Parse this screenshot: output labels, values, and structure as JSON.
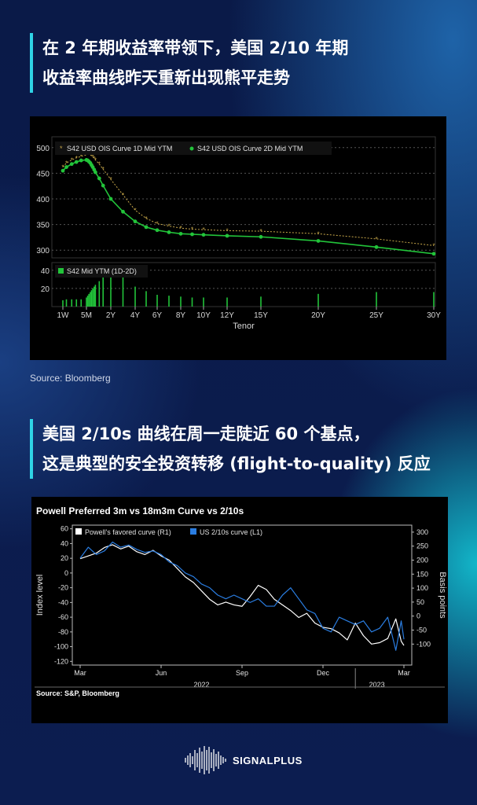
{
  "headline1": {
    "line1": "在 2 年期收益率带领下，美国 2/10 年期",
    "line2": "收益率曲线昨天重新出现熊平走势"
  },
  "headline2": {
    "line1": "美国 2/10s 曲线在周一走陡近 60 个基点，",
    "line2": "这是典型的安全投资转移 (flight-to-quality) 反应"
  },
  "source1": "Source: Bloomberg",
  "brand": "SIGNALPLUS",
  "chart_data": [
    {
      "type": "line",
      "title": "",
      "xlabel": "Tenor",
      "ylabel": "",
      "x_ticks": [
        "1W",
        "5M",
        "2Y",
        "4Y",
        "6Y",
        "8Y",
        "10Y",
        "12Y",
        "15Y",
        "20Y",
        "25Y",
        "30Y"
      ],
      "x_positions": [
        0.02,
        0.42,
        2,
        4,
        6,
        8,
        10,
        12,
        15,
        20,
        25,
        30
      ],
      "ylim": [
        285,
        515
      ],
      "y_ticks": [
        300,
        350,
        400,
        450,
        500
      ],
      "series": [
        {
          "name": "S42 USD OIS Curve 1D Mid YTM",
          "color": "#c8a84a",
          "x": [
            0.02,
            0.08,
            0.17,
            0.25,
            0.33,
            0.42,
            0.5,
            0.58,
            0.67,
            0.75,
            0.83,
            0.92,
            1,
            1.25,
            1.5,
            2,
            3,
            4,
            5,
            6,
            7,
            8,
            9,
            10,
            12,
            15,
            20,
            25,
            30
          ],
          "y": [
            462,
            470,
            476,
            480,
            483,
            486,
            487,
            487,
            486,
            484,
            482,
            479,
            476,
            468,
            458,
            438,
            408,
            378,
            362,
            352,
            347,
            343,
            341,
            340,
            338,
            337,
            332,
            322,
            309
          ]
        },
        {
          "name": "S42 USD OIS Curve 2D Mid YTM",
          "color": "#22c43a",
          "x": [
            0.02,
            0.08,
            0.17,
            0.25,
            0.33,
            0.42,
            0.5,
            0.58,
            0.67,
            0.75,
            0.83,
            0.92,
            1,
            1.25,
            1.5,
            2,
            3,
            4,
            5,
            6,
            7,
            8,
            9,
            10,
            12,
            15,
            20,
            25,
            30
          ],
          "y": [
            455,
            462,
            468,
            472,
            475,
            476,
            475,
            473,
            470,
            466,
            462,
            457,
            452,
            440,
            426,
            400,
            375,
            356,
            345,
            339,
            335,
            332,
            331,
            330,
            328,
            326,
            318,
            306,
            293
          ]
        }
      ],
      "sub_panel": {
        "type": "bar",
        "name": "S42 Mid YTM (1D-2D)",
        "color": "#22c43a",
        "y_ticks": [
          20,
          40
        ],
        "ylim": [
          0,
          45
        ],
        "x": [
          0.02,
          0.08,
          0.17,
          0.25,
          0.33,
          0.42,
          0.5,
          0.58,
          0.67,
          0.75,
          0.83,
          0.92,
          1,
          1.25,
          1.5,
          2,
          3,
          4,
          5,
          6,
          7,
          8,
          9,
          10,
          12,
          15,
          20,
          25,
          30
        ],
        "values": [
          7,
          8,
          8,
          8,
          8,
          10,
          12,
          14,
          16,
          18,
          20,
          22,
          24,
          28,
          32,
          38,
          33,
          22,
          17,
          13,
          12,
          11,
          10,
          10,
          10,
          11,
          14,
          16,
          16
        ]
      }
    },
    {
      "type": "line",
      "title": "Powell Preferred 3m vs 18m3m Curve vs 2/10s",
      "source": "Source: S&P, Bloomberg",
      "ylabel_left": "Index level",
      "ylabel_right": "Basis points",
      "ylim_left": [
        -125,
        65
      ],
      "y_ticks_left": [
        60,
        40,
        20,
        0,
        -20,
        -40,
        -60,
        -80,
        -100,
        -120
      ],
      "ylim_right": [
        -175,
        325
      ],
      "y_ticks_right": [
        300,
        250,
        200,
        150,
        100,
        50,
        0,
        -50,
        -100
      ],
      "x_ticks": [
        "Mar",
        "Jun",
        "Sep",
        "Dec",
        "Mar"
      ],
      "x_tick_positions": [
        0,
        3,
        6,
        9,
        12
      ],
      "x_years": [
        {
          "label": "2022",
          "pos": 4.5
        },
        {
          "label": "2023",
          "pos": 11
        }
      ],
      "series": [
        {
          "name": "Powell's favored curve (R1)",
          "color": "#ffffff",
          "axis": "right",
          "x": [
            0,
            0.3,
            0.6,
            0.9,
            1.2,
            1.5,
            1.8,
            2.1,
            2.4,
            2.7,
            3.0,
            3.3,
            3.6,
            3.9,
            4.2,
            4.5,
            4.8,
            5.1,
            5.4,
            5.7,
            6.0,
            6.3,
            6.6,
            6.9,
            7.2,
            7.5,
            7.8,
            8.1,
            8.4,
            8.7,
            9.0,
            9.3,
            9.6,
            9.9,
            10.2,
            10.5,
            10.8,
            11.1,
            11.4,
            11.7,
            11.9,
            12
          ],
          "y": [
            205,
            215,
            225,
            245,
            255,
            240,
            250,
            230,
            220,
            235,
            215,
            200,
            170,
            140,
            120,
            90,
            60,
            40,
            50,
            40,
            35,
            70,
            110,
            95,
            60,
            40,
            20,
            -5,
            10,
            -25,
            -40,
            -45,
            -60,
            -85,
            -25,
            -70,
            -100,
            -95,
            -80,
            -10,
            -90,
            -105
          ]
        },
        {
          "name": "US 2/10s curve (L1)",
          "color": "#2a7de1",
          "axis": "left",
          "x": [
            0,
            0.3,
            0.6,
            0.9,
            1.2,
            1.5,
            1.8,
            2.1,
            2.4,
            2.7,
            3.0,
            3.3,
            3.6,
            3.9,
            4.2,
            4.5,
            4.8,
            5.1,
            5.4,
            5.7,
            6.0,
            6.3,
            6.6,
            6.9,
            7.2,
            7.5,
            7.8,
            8.1,
            8.4,
            8.7,
            9.0,
            9.3,
            9.6,
            9.9,
            10.2,
            10.5,
            10.8,
            11.1,
            11.4,
            11.7,
            11.9,
            12
          ],
          "y": [
            20,
            35,
            25,
            30,
            42,
            35,
            38,
            32,
            28,
            30,
            25,
            15,
            10,
            0,
            -5,
            -15,
            -20,
            -30,
            -35,
            -30,
            -35,
            -40,
            -35,
            -45,
            -45,
            -30,
            -20,
            -35,
            -50,
            -55,
            -75,
            -80,
            -60,
            -65,
            -70,
            -65,
            -80,
            -75,
            -60,
            -105,
            -65,
            -90
          ]
        }
      ]
    }
  ]
}
